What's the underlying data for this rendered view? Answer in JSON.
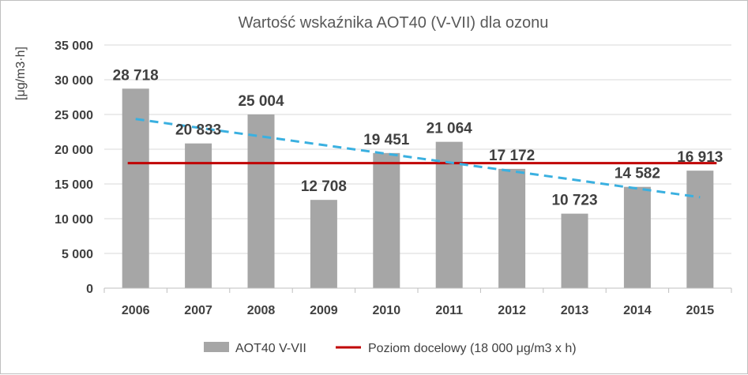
{
  "chart_data": {
    "type": "bar",
    "title": "Wartość wskaźnika AOT40  (V-VII) dla ozonu",
    "ylabel": "[μg/m3·h]",
    "xlabel": "",
    "categories": [
      "2006",
      "2007",
      "2008",
      "2009",
      "2010",
      "2011",
      "2012",
      "2013",
      "2014",
      "2015"
    ],
    "series": [
      {
        "name": "AOT40 V-VII",
        "values": [
          28718,
          20833,
          25004,
          12708,
          19451,
          21064,
          17172,
          10723,
          14582,
          16913
        ],
        "data_labels": [
          "28 718",
          "20 833",
          "25 004",
          "12 708",
          "19 451",
          "21 064",
          "17 172",
          "10 723",
          "14 582",
          "16 913"
        ],
        "color": "#a6a6a6"
      }
    ],
    "target_line": {
      "name": "Poziom docelowy (18 000 μg/m3 x h)",
      "value": 18000,
      "color": "#c00000"
    },
    "trendline": {
      "type": "linear",
      "color": "#3ab0e0",
      "style": "dashed"
    },
    "ylim": [
      0,
      35000
    ],
    "yticks": [
      0,
      5000,
      10000,
      15000,
      20000,
      25000,
      30000,
      35000
    ],
    "ytick_labels": [
      "0",
      "5 000",
      "10 000",
      "15 000",
      "20 000",
      "25 000",
      "30 000",
      "35 000"
    ],
    "grid": true,
    "legend_position": "bottom"
  }
}
